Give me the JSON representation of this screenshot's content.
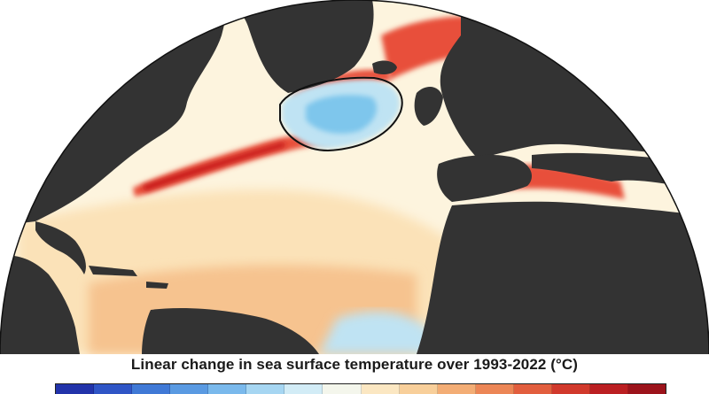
{
  "caption": "Linear change in sea surface temperature over 1993-2022 (°C)",
  "colors": {
    "land": "#333333",
    "outline": "#111111",
    "ocean_warm_light": "#fbe2b8",
    "ocean_warm": "#f6c38f",
    "ocean_hot": "#e8503a",
    "ocean_hottest": "#c81e1e",
    "ocean_neutral": "#fdf4de",
    "ocean_cool": "#bfe3f3",
    "ocean_cold": "#7ec6ec"
  },
  "colorbar": {
    "colors": [
      "#2233aa",
      "#2f55c6",
      "#4079d6",
      "#5a9ae2",
      "#7ab9ec",
      "#a6d6f2",
      "#d2ecf6",
      "#f4f6ec",
      "#fbe7c2",
      "#f8cf9a",
      "#f3ad75",
      "#ec8656",
      "#e25e3e",
      "#d1392c",
      "#bb1f22",
      "#9c131b"
    ]
  }
}
